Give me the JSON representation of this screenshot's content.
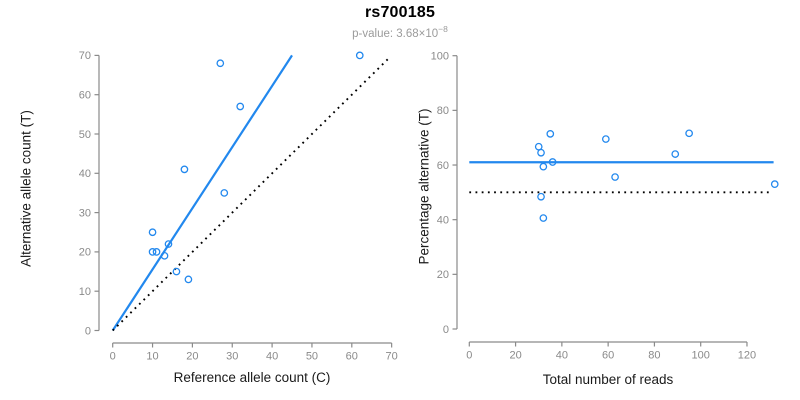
{
  "header": {
    "title": "rs700185",
    "subtitle_base": "p-value: 3.68×10",
    "subtitle_exponent": "−8"
  },
  "style": {
    "accent_blue": "#2288EE",
    "dashed_black": "#000000",
    "axis_color": "#8a8a8a",
    "tick_label_color": "#8a8a8a",
    "title_color": "#000000",
    "subtitle_color": "#9b9b9b",
    "text_color": "#1a1a1a",
    "background": "#ffffff"
  },
  "chart_data": [
    {
      "type": "scatter",
      "xlabel": "Reference allele count (C)",
      "ylabel": "Alternative allele count (T)",
      "xlim": [
        0,
        70
      ],
      "ylim": [
        0,
        70
      ],
      "xticks": [
        0,
        10,
        20,
        30,
        40,
        50,
        60,
        70
      ],
      "yticks": [
        0,
        10,
        20,
        30,
        40,
        50,
        60,
        70
      ],
      "grid": false,
      "legend": false,
      "points": [
        [
          10,
          25
        ],
        [
          10,
          20
        ],
        [
          11,
          20
        ],
        [
          13,
          19
        ],
        [
          14,
          22
        ],
        [
          16,
          15
        ],
        [
          19,
          13
        ],
        [
          18,
          41
        ],
        [
          27,
          68
        ],
        [
          28,
          35
        ],
        [
          32,
          57
        ],
        [
          62,
          70
        ]
      ],
      "lines": [
        {
          "name": "fit-line",
          "style": "solid",
          "color": "#2288EE",
          "from": [
            0,
            0
          ],
          "to": [
            45,
            70
          ],
          "slope": 1.56,
          "intercept": 0
        },
        {
          "name": "identity-line",
          "style": "dotted",
          "color": "#000000",
          "from": [
            0,
            0
          ],
          "to": [
            69.5,
            69.5
          ],
          "slope": 1,
          "intercept": 0
        }
      ]
    },
    {
      "type": "scatter",
      "xlabel": "Total number of reads",
      "ylabel": "Percentage alternative (T)",
      "xlim": [
        0,
        132
      ],
      "ylim": [
        0,
        100
      ],
      "xticks": [
        0,
        20,
        40,
        60,
        80,
        100,
        120
      ],
      "yticks": [
        0,
        20,
        40,
        60,
        80,
        100
      ],
      "grid": false,
      "legend": false,
      "points": [
        [
          35,
          71.4
        ],
        [
          30,
          66.7
        ],
        [
          31,
          64.5
        ],
        [
          32,
          59.4
        ],
        [
          36,
          61.1
        ],
        [
          31,
          48.4
        ],
        [
          32,
          40.6
        ],
        [
          59,
          69.5
        ],
        [
          95,
          71.6
        ],
        [
          63,
          55.6
        ],
        [
          89,
          64.0
        ],
        [
          132,
          53.0
        ]
      ],
      "lines": [
        {
          "name": "mean-percentage-line",
          "style": "solid",
          "color": "#2288EE",
          "y": 61,
          "from": [
            0,
            61
          ],
          "to": [
            131.5,
            61
          ]
        },
        {
          "name": "fifty-percent-line",
          "style": "dotted",
          "color": "#000000",
          "y": 50,
          "from": [
            0,
            50
          ],
          "to": [
            130,
            50
          ]
        }
      ]
    }
  ]
}
